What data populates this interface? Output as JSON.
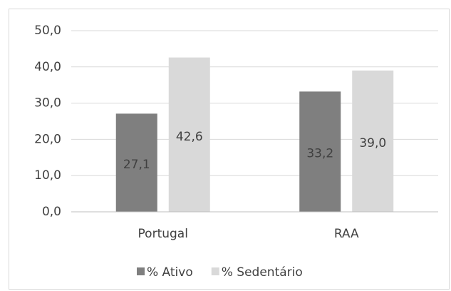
{
  "chart_data": {
    "type": "bar",
    "categories": [
      "Portugal",
      "RAA"
    ],
    "series": [
      {
        "name": "% Ativo",
        "color": "#7f7f7f",
        "values": [
          27.1,
          33.2
        ],
        "value_labels": [
          "27,1",
          "33,2"
        ]
      },
      {
        "name": "% Sedentário",
        "color": "#d9d9d9",
        "values": [
          42.6,
          39.0
        ],
        "value_labels": [
          "42,6",
          "39,0"
        ]
      }
    ],
    "ylim": [
      0,
      50
    ],
    "yticks": [
      {
        "value": 0,
        "label": "0,0"
      },
      {
        "value": 10,
        "label": "10,0"
      },
      {
        "value": 20,
        "label": "20,0"
      },
      {
        "value": 30,
        "label": "30,0"
      },
      {
        "value": 40,
        "label": "40,0"
      },
      {
        "value": 50,
        "label": "50,0"
      }
    ],
    "grid": true,
    "legend": "bottom"
  }
}
